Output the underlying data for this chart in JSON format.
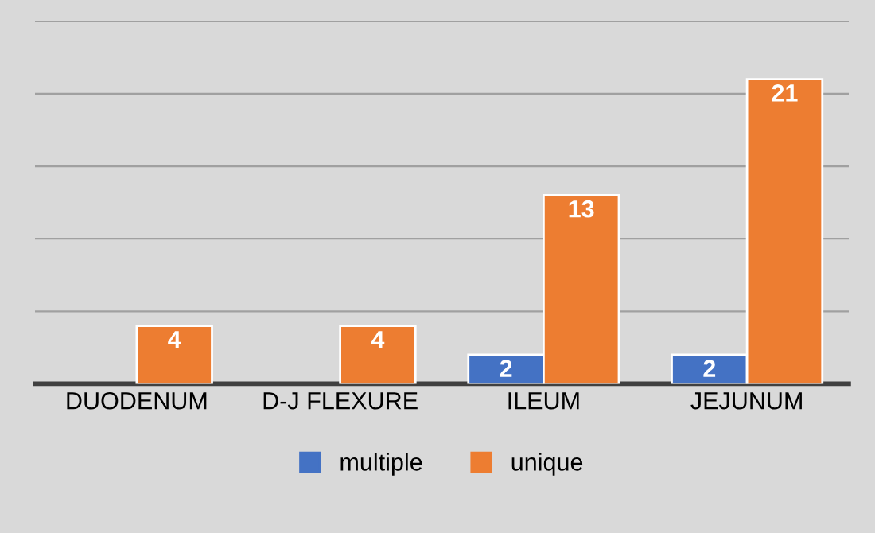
{
  "chart_data": {
    "type": "bar",
    "categories": [
      "DUODENUM",
      "D-J FLEXURE",
      "ILEUM",
      "JEJUNUM"
    ],
    "series": [
      {
        "name": "multiple",
        "color": "#4472c4",
        "values": [
          null,
          null,
          2,
          2
        ]
      },
      {
        "name": "unique",
        "color": "#ed7d31",
        "values": [
          4,
          4,
          13,
          21
        ]
      }
    ],
    "ylim": [
      0,
      25
    ],
    "yticks": [
      {
        "value": 0,
        "label": null
      },
      {
        "value": 5,
        "label": null
      },
      {
        "value": 10,
        "label": null
      },
      {
        "value": 15,
        "label": null
      },
      {
        "value": 20,
        "label": null
      },
      {
        "value": 25,
        "label": null
      }
    ],
    "tick_labels": "x",
    "grid": "y",
    "legend": "bottom",
    "data_labels": true
  }
}
